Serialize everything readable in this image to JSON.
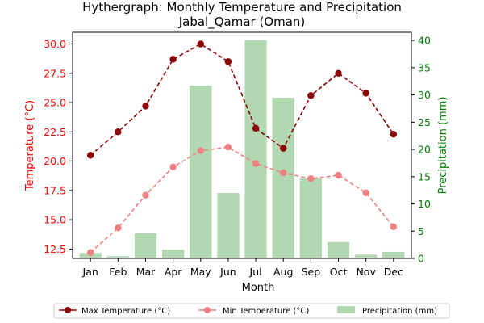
{
  "chart_data": {
    "type": "bar+line",
    "title_line1": "Hythergraph: Monthly Temperature and Precipitation",
    "title_line2": "Jabal_Qamar (Oman)",
    "xlabel": "Month",
    "ylabel_left": "Temperature (°C)",
    "ylabel_right": "Precipitation (mm)",
    "categories": [
      "Jan",
      "Feb",
      "Mar",
      "Apr",
      "May",
      "Jun",
      "Jul",
      "Aug",
      "Sep",
      "Oct",
      "Nov",
      "Dec"
    ],
    "ylim_left": [
      11.7,
      31.0
    ],
    "ylim_right": [
      0,
      41.5
    ],
    "yticks_left": [
      12.5,
      15.0,
      17.5,
      20.0,
      22.5,
      25.0,
      27.5,
      30.0
    ],
    "ytick_labels_left": [
      "12.5",
      "15.0",
      "17.5",
      "20.0",
      "22.5",
      "25.0",
      "27.5",
      "30.0"
    ],
    "yticks_right": [
      0,
      5,
      10,
      15,
      20,
      25,
      30,
      35,
      40
    ],
    "ytick_labels_right": [
      "0",
      "5",
      "10",
      "15",
      "20",
      "25",
      "30",
      "35",
      "40"
    ],
    "series": [
      {
        "name": "Max Temperature (°C)",
        "kind": "line",
        "axis": "left",
        "color": "#8b0000",
        "values": [
          20.5,
          22.5,
          24.7,
          28.7,
          30.0,
          28.5,
          22.8,
          21.1,
          25.6,
          27.5,
          25.8,
          22.3
        ]
      },
      {
        "name": "Min Temperature (°C)",
        "kind": "line",
        "axis": "left",
        "color": "#f08080",
        "values": [
          12.2,
          14.3,
          17.1,
          19.5,
          20.9,
          21.2,
          19.8,
          19.0,
          18.5,
          18.8,
          17.3,
          14.4
        ]
      },
      {
        "name": "Precipitation (mm)",
        "kind": "bar",
        "axis": "right",
        "color": "#b2d8b2",
        "values": [
          1.0,
          0.4,
          4.6,
          1.6,
          31.7,
          12.0,
          40.0,
          29.5,
          14.7,
          3.0,
          0.7,
          1.2
        ]
      }
    ],
    "legend": {
      "placement": "bottom-center"
    },
    "colors": {
      "left_axis": "#ff0000",
      "right_axis": "#008000",
      "axis_line": "#000000"
    },
    "grid": false
  }
}
